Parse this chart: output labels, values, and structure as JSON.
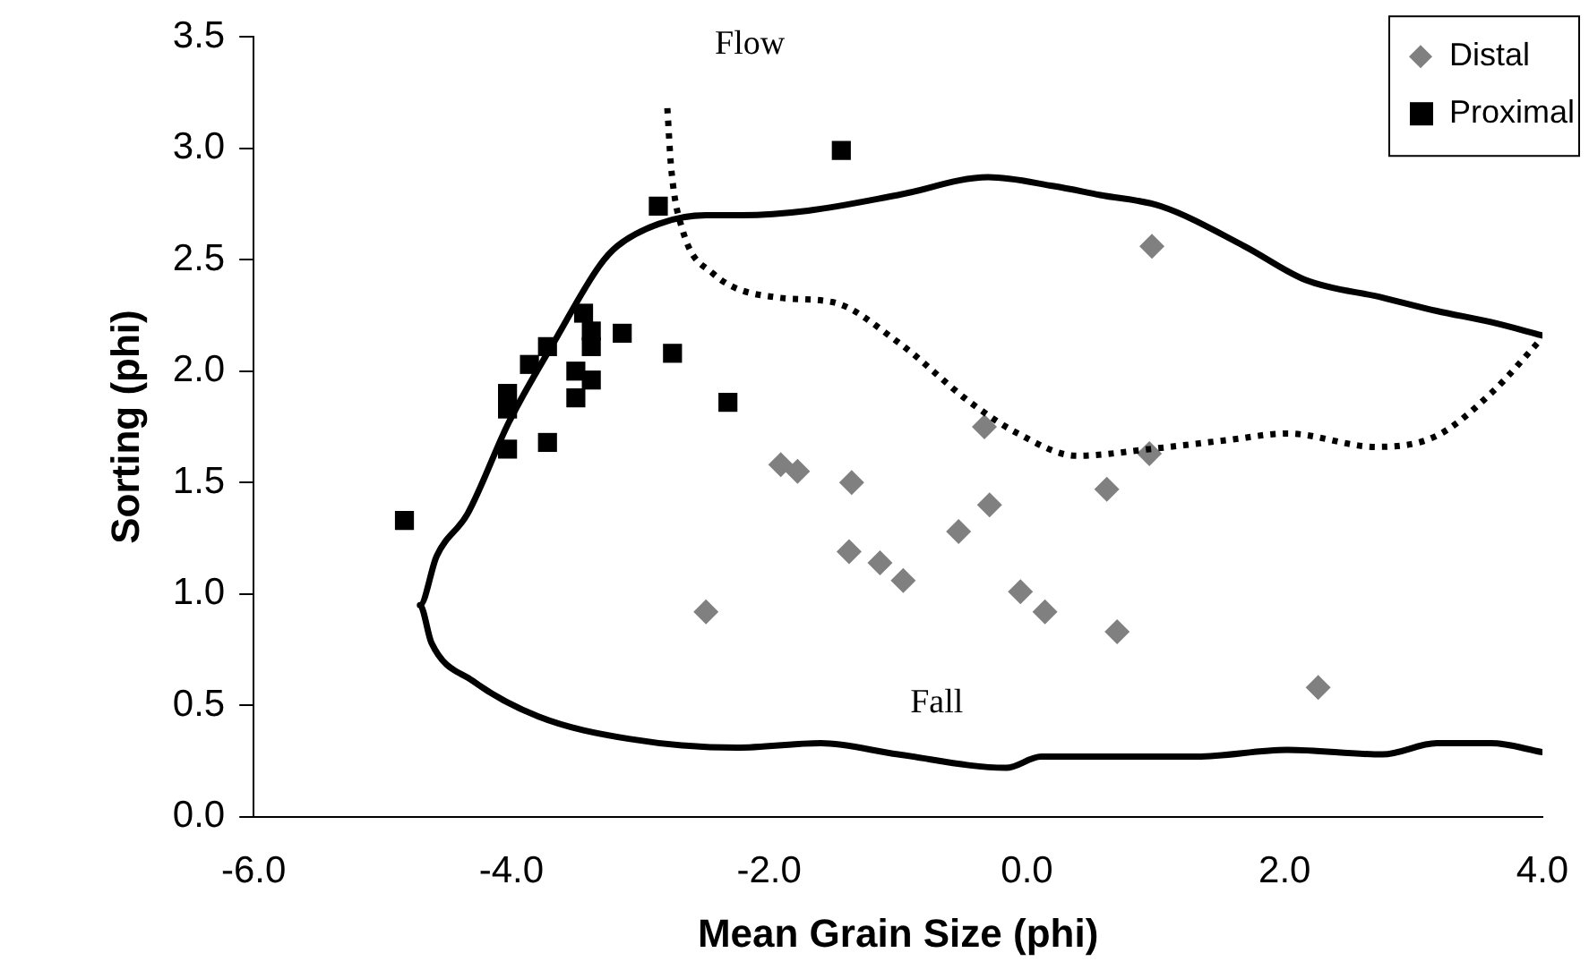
{
  "chart_data": {
    "type": "scatter",
    "xlabel": "Mean Grain Size (phi)",
    "ylabel": "Sorting (phi)",
    "xlim": [
      -6,
      4
    ],
    "xticks": [
      {
        "value": -6,
        "label": "-6.0"
      },
      {
        "value": -4,
        "label": "-4.0"
      },
      {
        "value": -2,
        "label": "-2.0"
      },
      {
        "value": 0,
        "label": "0.0"
      },
      {
        "value": 2,
        "label": "2.0"
      },
      {
        "value": 4,
        "label": "4.0"
      }
    ],
    "ylim": [
      0,
      3.5
    ],
    "yticks": [
      {
        "value": 0,
        "label": "0.0"
      },
      {
        "value": 0.5,
        "label": "0.5"
      },
      {
        "value": 1,
        "label": "1.0"
      },
      {
        "value": 1.5,
        "label": "1.5"
      },
      {
        "value": 2,
        "label": "2.0"
      },
      {
        "value": 2.5,
        "label": "2.5"
      },
      {
        "value": 3,
        "label": "3.0"
      },
      {
        "value": 3.5,
        "label": "3.5"
      }
    ],
    "grid": false,
    "legend": "top right",
    "annotations": [
      "Flow",
      "Fall"
    ],
    "series": [
      {
        "type": "line",
        "color": "#000000",
        "line_style": "solid",
        "marker": "none",
        "x": [
          4.0,
          3.6,
          3.18,
          2.76,
          2.16,
          1.69,
          1.04,
          0.57,
          0.21,
          -0.3,
          -1.0,
          -1.7,
          -2.21,
          -2.49,
          -2.86,
          -3.18,
          -3.32,
          -3.65,
          -4.02,
          -4.34,
          -4.58,
          -4.71,
          -4.62,
          -4.3,
          -3.79,
          -3.09,
          -2.25,
          -1.6,
          -1.0,
          -0.16,
          0.11,
          1.32,
          2.02,
          2.76,
          3.18,
          3.6,
          4.0
        ],
        "values": [
          2.16,
          2.22,
          2.27,
          2.33,
          2.41,
          2.56,
          2.74,
          2.79,
          2.83,
          2.87,
          2.79,
          2.72,
          2.7,
          2.7,
          2.66,
          2.56,
          2.47,
          2.15,
          1.77,
          1.36,
          1.17,
          0.95,
          0.78,
          0.61,
          0.45,
          0.35,
          0.31,
          0.33,
          0.28,
          0.22,
          0.27,
          0.27,
          0.3,
          0.28,
          0.33,
          0.33,
          0.29
        ]
      },
      {
        "type": "line",
        "color": "#000000",
        "line_style": "dotted",
        "marker": "none",
        "x": [
          -2.79,
          -2.76,
          -2.67,
          -2.44,
          -1.93,
          -1.51,
          -1.0,
          -0.44,
          -0.07,
          0.39,
          0.95,
          1.55,
          2.02,
          2.71,
          3.18,
          3.6,
          4.0
        ],
        "values": [
          3.18,
          2.91,
          2.63,
          2.44,
          2.33,
          2.31,
          2.13,
          1.86,
          1.72,
          1.62,
          1.65,
          1.69,
          1.72,
          1.66,
          1.71,
          1.9,
          2.15
        ]
      },
      {
        "name": "Distal",
        "color": "#808080",
        "marker": "diamond",
        "x": [
          -2.49,
          -1.91,
          -1.78,
          -1.36,
          -0.33,
          0.97,
          0.95,
          0.62,
          -0.29,
          -0.53,
          -1.38,
          -1.14,
          -0.96,
          -0.05,
          0.14,
          0.7,
          2.26
        ],
        "values": [
          0.92,
          1.58,
          1.55,
          1.5,
          1.75,
          2.56,
          1.63,
          1.47,
          1.4,
          1.28,
          1.19,
          1.14,
          1.06,
          1.01,
          0.92,
          0.83,
          0.58
        ]
      },
      {
        "name": "Proximal",
        "color": "#000000",
        "marker": "square",
        "x": [
          -4.83,
          -2.86,
          -3.44,
          -3.38,
          -3.38,
          -3.14,
          -2.75,
          -3.72,
          -3.86,
          -4.03,
          -4.03,
          -3.5,
          -3.38,
          -3.5,
          -4.03,
          -3.72,
          -2.32,
          -1.44
        ],
        "values": [
          1.33,
          2.74,
          2.26,
          2.18,
          2.11,
          2.17,
          2.08,
          2.11,
          2.03,
          1.9,
          1.83,
          2.0,
          1.96,
          1.88,
          1.65,
          1.68,
          1.86,
          2.99
        ]
      }
    ]
  }
}
